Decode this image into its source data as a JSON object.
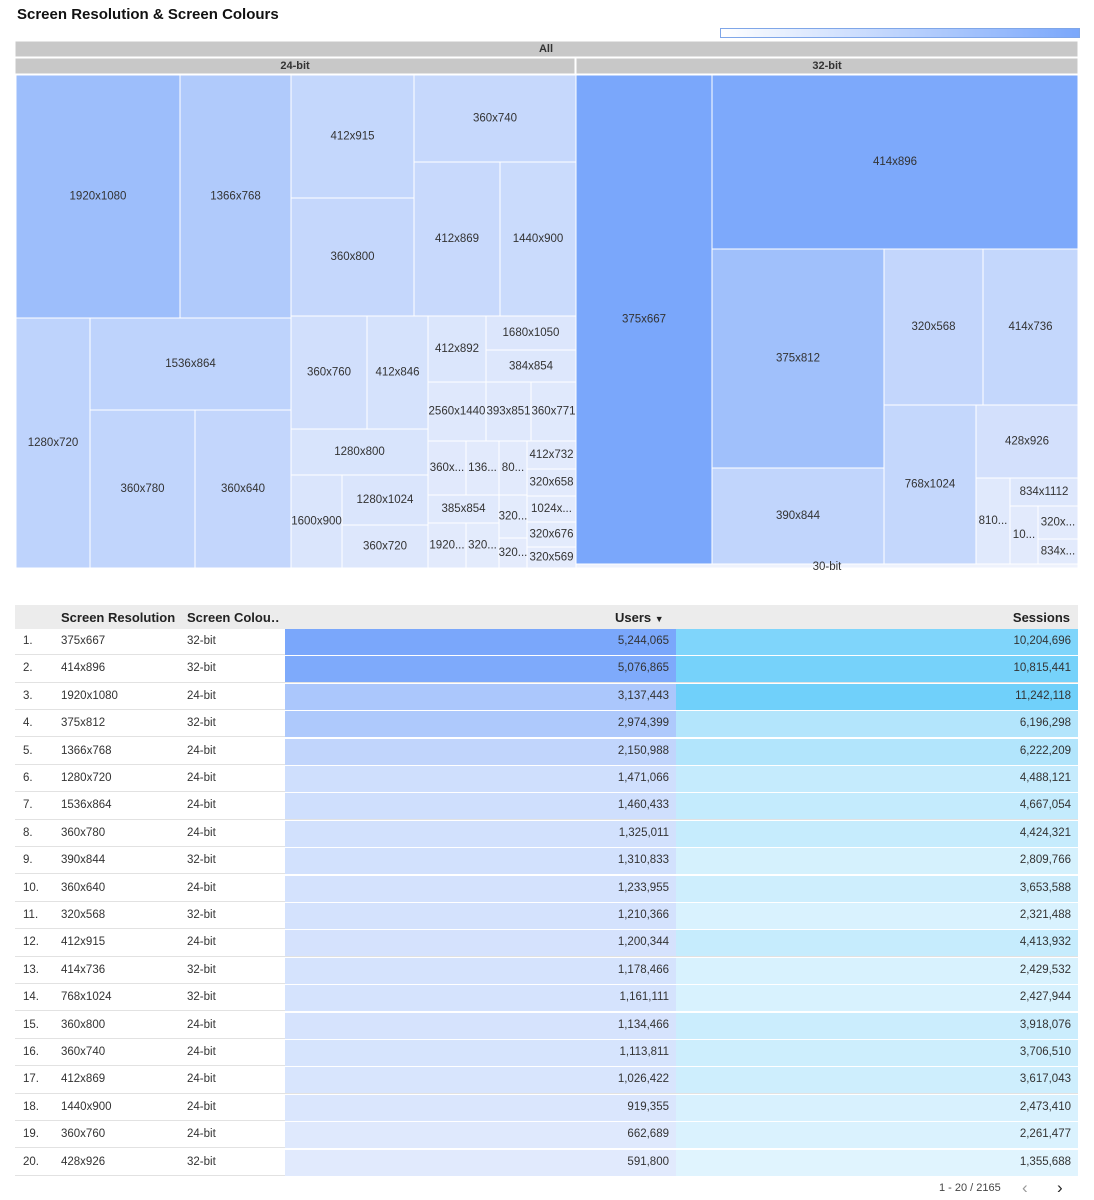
{
  "title": "Screen Resolution & Screen Colours",
  "chart_data": {
    "type": "treemap",
    "root_label": "All",
    "legend": "top-right",
    "colors": {
      "low": "#e8eefc",
      "high": "#7aa7fb"
    },
    "groups": [
      {
        "label": "24-bit",
        "nodes": [
          {
            "label": "1920x1080",
            "value": 3137443
          },
          {
            "label": "1366x768",
            "value": 2150988
          },
          {
            "label": "412x915",
            "value": 1200344
          },
          {
            "label": "360x740",
            "value": 1113811
          },
          {
            "label": "360x800",
            "value": 1134466
          },
          {
            "label": "412x869",
            "value": 1026422
          },
          {
            "label": "1440x900",
            "value": 919355
          },
          {
            "label": "1280x720",
            "value": 1471066
          },
          {
            "label": "1536x864",
            "value": 1460433
          },
          {
            "label": "360x780",
            "value": 1325011
          },
          {
            "label": "360x640",
            "value": 1233955
          },
          {
            "label": "360x760",
            "value": 662689
          },
          {
            "label": "412x846",
            "value": 500000
          },
          {
            "label": "412x892",
            "value": 300000
          },
          {
            "label": "1680x1050",
            "value": 280000
          },
          {
            "label": "384x854",
            "value": 230000
          },
          {
            "label": "2560x1440",
            "value": 200000
          },
          {
            "label": "393x851",
            "value": 180000
          },
          {
            "label": "360x771",
            "value": 170000
          },
          {
            "label": "1280x800",
            "value": 400000
          },
          {
            "label": "360x...",
            "value": 140000
          },
          {
            "label": "136...",
            "value": 120000
          },
          {
            "label": "80...",
            "value": 100000
          },
          {
            "label": "412x732",
            "value": 110000
          },
          {
            "label": "320x658",
            "value": 100000
          },
          {
            "label": "1280x1024",
            "value": 350000
          },
          {
            "label": "385x854",
            "value": 150000
          },
          {
            "label": "320...",
            "value": 90000
          },
          {
            "label": "1024x...",
            "value": 90000
          },
          {
            "label": "1600x900",
            "value": 330000
          },
          {
            "label": "360x720",
            "value": 250000
          },
          {
            "label": "1920...",
            "value": 100000
          },
          {
            "label": "320...",
            "value": 80000
          },
          {
            "label": "320...",
            "value": 70000
          },
          {
            "label": "320x676",
            "value": 80000
          },
          {
            "label": "320x569",
            "value": 70000
          }
        ]
      },
      {
        "label": "32-bit",
        "nodes": [
          {
            "label": "375x667",
            "value": 5244065
          },
          {
            "label": "414x896",
            "value": 5076865
          },
          {
            "label": "375x812",
            "value": 2974399
          },
          {
            "label": "320x568",
            "value": 1210366
          },
          {
            "label": "414x736",
            "value": 1178466
          },
          {
            "label": "390x844",
            "value": 1310833
          },
          {
            "label": "768x1024",
            "value": 1161111
          },
          {
            "label": "428x926",
            "value": 591800
          },
          {
            "label": "834x1112",
            "value": 250000
          },
          {
            "label": "810...",
            "value": 150000
          },
          {
            "label": "10...",
            "value": 100000
          },
          {
            "label": "320x...",
            "value": 120000
          },
          {
            "label": "834x...",
            "value": 100000
          }
        ]
      },
      {
        "label": "30-bit",
        "nodes": []
      }
    ]
  },
  "table": {
    "headers": {
      "resolution": "Screen Resolution",
      "colours": "Screen Colou…",
      "users": "Users",
      "sort_indicator": "▼",
      "sessions": "Sessions"
    },
    "max_users": 5244065,
    "max_sessions": 11242118,
    "rows": [
      {
        "n": "1.",
        "res": "375x667",
        "col": "32-bit",
        "users": "5,244,065",
        "sessions": "10,204,696",
        "u": 5244065,
        "s": 10204696
      },
      {
        "n": "2.",
        "res": "414x896",
        "col": "32-bit",
        "users": "5,076,865",
        "sessions": "10,815,441",
        "u": 5076865,
        "s": 10815441
      },
      {
        "n": "3.",
        "res": "1920x1080",
        "col": "24-bit",
        "users": "3,137,443",
        "sessions": "11,242,118",
        "u": 3137443,
        "s": 11242118
      },
      {
        "n": "4.",
        "res": "375x812",
        "col": "32-bit",
        "users": "2,974,399",
        "sessions": "6,196,298",
        "u": 2974399,
        "s": 6196298
      },
      {
        "n": "5.",
        "res": "1366x768",
        "col": "24-bit",
        "users": "2,150,988",
        "sessions": "6,222,209",
        "u": 2150988,
        "s": 6222209
      },
      {
        "n": "6.",
        "res": "1280x720",
        "col": "24-bit",
        "users": "1,471,066",
        "sessions": "4,488,121",
        "u": 1471066,
        "s": 4488121
      },
      {
        "n": "7.",
        "res": "1536x864",
        "col": "24-bit",
        "users": "1,460,433",
        "sessions": "4,667,054",
        "u": 1460433,
        "s": 4667054
      },
      {
        "n": "8.",
        "res": "360x780",
        "col": "24-bit",
        "users": "1,325,011",
        "sessions": "4,424,321",
        "u": 1325011,
        "s": 4424321
      },
      {
        "n": "9.",
        "res": "390x844",
        "col": "32-bit",
        "users": "1,310,833",
        "sessions": "2,809,766",
        "u": 1310833,
        "s": 2809766
      },
      {
        "n": "10.",
        "res": "360x640",
        "col": "24-bit",
        "users": "1,233,955",
        "sessions": "3,653,588",
        "u": 1233955,
        "s": 3653588
      },
      {
        "n": "11.",
        "res": "320x568",
        "col": "32-bit",
        "users": "1,210,366",
        "sessions": "2,321,488",
        "u": 1210366,
        "s": 2321488
      },
      {
        "n": "12.",
        "res": "412x915",
        "col": "24-bit",
        "users": "1,200,344",
        "sessions": "4,413,932",
        "u": 1200344,
        "s": 4413932
      },
      {
        "n": "13.",
        "res": "414x736",
        "col": "32-bit",
        "users": "1,178,466",
        "sessions": "2,429,532",
        "u": 1178466,
        "s": 2429532
      },
      {
        "n": "14.",
        "res": "768x1024",
        "col": "32-bit",
        "users": "1,161,111",
        "sessions": "2,427,944",
        "u": 1161111,
        "s": 2427944
      },
      {
        "n": "15.",
        "res": "360x800",
        "col": "24-bit",
        "users": "1,134,466",
        "sessions": "3,918,076",
        "u": 1134466,
        "s": 3918076
      },
      {
        "n": "16.",
        "res": "360x740",
        "col": "24-bit",
        "users": "1,113,811",
        "sessions": "3,706,510",
        "u": 1113811,
        "s": 3706510
      },
      {
        "n": "17.",
        "res": "412x869",
        "col": "24-bit",
        "users": "1,026,422",
        "sessions": "3,617,043",
        "u": 1026422,
        "s": 3617043
      },
      {
        "n": "18.",
        "res": "1440x900",
        "col": "24-bit",
        "users": "919,355",
        "sessions": "2,473,410",
        "u": 919355,
        "s": 2473410
      },
      {
        "n": "19.",
        "res": "360x760",
        "col": "24-bit",
        "users": "662,689",
        "sessions": "2,261,477",
        "u": 662689,
        "s": 2261477
      },
      {
        "n": "20.",
        "res": "428x926",
        "col": "32-bit",
        "users": "591,800",
        "sessions": "1,355,688",
        "u": 591800,
        "s": 1355688
      }
    ]
  },
  "pagination": {
    "range": "1 - 20 / 2165",
    "prev_icon": "chevron-left-icon",
    "next_icon": "chevron-right-icon"
  }
}
